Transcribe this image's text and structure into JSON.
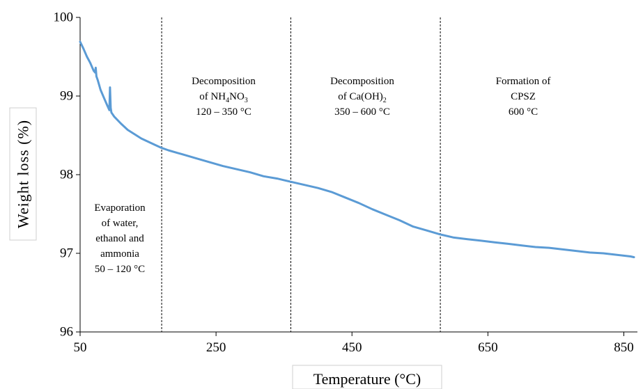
{
  "chart_data": {
    "type": "line",
    "xlabel": "Temperature (°C)",
    "ylabel": "Weight loss (%)",
    "xlim": [
      50,
      870
    ],
    "ylim": [
      96,
      100
    ],
    "x_ticks": [
      "50",
      "250",
      "450",
      "650",
      "850"
    ],
    "y_ticks": [
      "96",
      "97",
      "98",
      "99",
      "100"
    ],
    "grid": false,
    "series_color": "#5b9bd5",
    "series": [
      {
        "x": [
          50,
          55,
          60,
          65,
          70,
          72,
          73,
          74,
          76,
          80,
          85,
          90,
          93,
          94,
          95,
          96,
          100,
          110,
          120,
          140,
          160,
          170,
          180,
          200,
          220,
          240,
          260,
          280,
          300,
          320,
          340,
          350,
          360,
          380,
          400,
          420,
          440,
          460,
          480,
          500,
          520,
          540,
          560,
          580,
          600,
          620,
          640,
          660,
          680,
          700,
          720,
          740,
          760,
          780,
          800,
          820,
          840,
          860,
          865
        ],
        "y": [
          99.69,
          99.6,
          99.5,
          99.42,
          99.32,
          99.3,
          99.36,
          99.25,
          99.2,
          99.08,
          98.98,
          98.88,
          98.82,
          99.11,
          98.85,
          98.79,
          98.74,
          98.65,
          98.57,
          98.46,
          98.38,
          98.34,
          98.31,
          98.26,
          98.21,
          98.16,
          98.11,
          98.07,
          98.03,
          97.98,
          97.95,
          97.93,
          97.91,
          97.87,
          97.83,
          97.78,
          97.71,
          97.64,
          97.56,
          97.49,
          97.42,
          97.34,
          97.29,
          97.24,
          97.2,
          97.18,
          97.16,
          97.14,
          97.12,
          97.1,
          97.08,
          97.07,
          97.05,
          97.03,
          97.01,
          97,
          96.98,
          96.96,
          96.95
        ]
      }
    ],
    "dividers_x": [
      170,
      360,
      580
    ],
    "regions": [
      {
        "lines": [
          "Evaporation",
          "of water,",
          "ethanol and",
          "ammonia",
          "50 – 120 °C"
        ]
      },
      {
        "line1": "Decomposition",
        "line2_prefix": "of NH",
        "sub1": "4",
        "line2_mid": "NO",
        "sub2": "3",
        "line3": "120 – 350 °C"
      },
      {
        "line1": "Decomposition",
        "line2_prefix": "of Ca(OH)",
        "sub1": "2",
        "line3": "350 – 600 °C"
      },
      {
        "lines": [
          "Formation of",
          "CPSZ",
          "600 °C"
        ]
      }
    ]
  }
}
